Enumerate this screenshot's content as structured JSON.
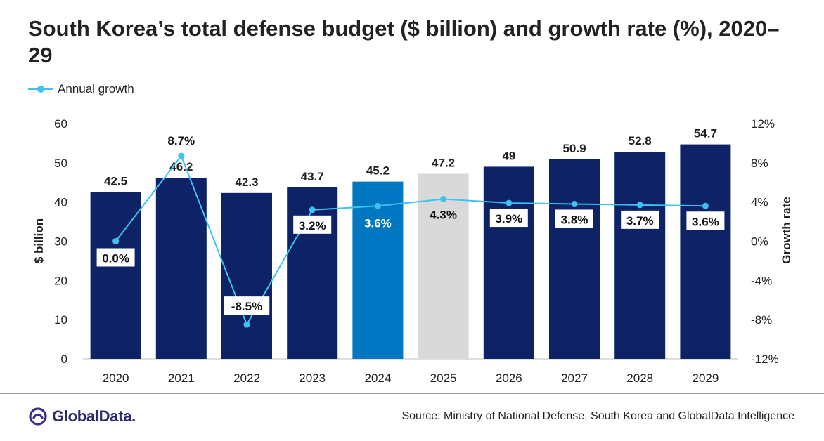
{
  "title": "South Korea’s total defense budget ($ billion) and growth rate (%), 2020–29",
  "legend": {
    "growth_label": "Annual growth"
  },
  "source": "Source: Ministry of National Defense, South Korea and GlobalData Intelligence",
  "logo": {
    "text": "GlobalData."
  },
  "colors": {
    "navy": "#0d2366",
    "blue": "#0077c0",
    "gray": "#d9d9d9",
    "line": "#3ec1f3"
  },
  "chart_data": {
    "type": "bar",
    "categories": [
      "2020",
      "2021",
      "2022",
      "2023",
      "2024",
      "2025",
      "2026",
      "2027",
      "2028",
      "2029"
    ],
    "series": [
      {
        "values": [
          42.5,
          46.2,
          42.3,
          43.7,
          45.2,
          47.2,
          49,
          50.9,
          52.8,
          54.7
        ],
        "labels": [
          "42.5",
          "46.2",
          "42.3",
          "43.7",
          "45.2",
          "47.2",
          "49",
          "50.9",
          "52.8",
          "54.7"
        ],
        "bar_colors": [
          "navy",
          "navy",
          "navy",
          "navy",
          "blue",
          "gray",
          "navy",
          "navy",
          "navy",
          "navy"
        ]
      },
      {
        "name": "Annual growth",
        "type": "line",
        "axis": "right",
        "values": [
          0.0,
          8.7,
          -8.5,
          3.2,
          3.6,
          4.3,
          3.9,
          3.8,
          3.7,
          3.6
        ],
        "labels": [
          "0.0%",
          "8.7%",
          "-8.5%",
          "3.2%",
          "3.6%",
          "4.3%",
          "3.9%",
          "3.8%",
          "3.7%",
          "3.6%"
        ]
      }
    ],
    "ylabel": "$ billion",
    "y2label": "Growth rate",
    "ylim": [
      0,
      60
    ],
    "y2lim": [
      -12,
      12
    ],
    "yticks": [
      "0",
      "10",
      "20",
      "30",
      "40",
      "50",
      "60"
    ],
    "y2ticks": [
      "-12%",
      "-8%",
      "-4%",
      "0%",
      "4%",
      "8%",
      "12%"
    ],
    "grid": false
  }
}
